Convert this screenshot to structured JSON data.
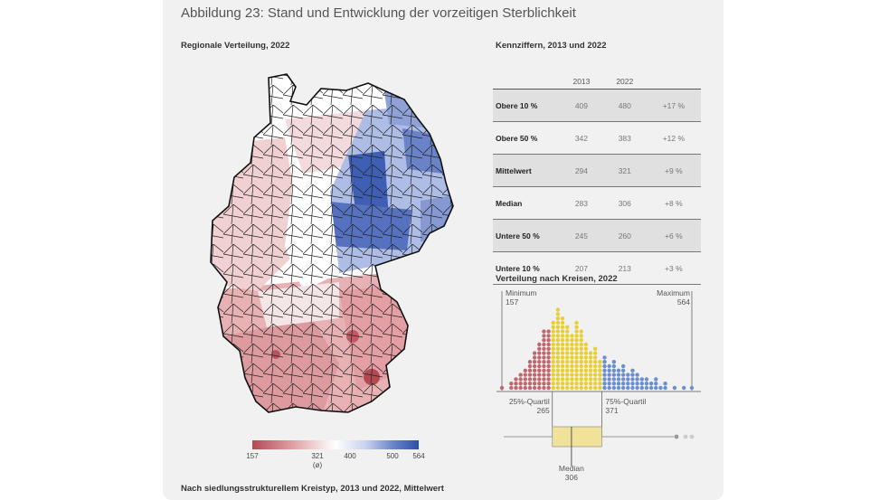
{
  "title": "Abbildung 23: Stand und Entwicklung der vorzeitigen Sterblichkeit",
  "map_heading": "Regionale Verteilung, 2022",
  "table_heading": "Kennziffern, 2013 und 2022",
  "dist_heading": "Verteilung nach Kreisen, 2022",
  "bottom_heading": "Nach siedlungsstrukturellem Kreistyp, 2013 und 2022, Mittelwert",
  "legend": {
    "min": "157",
    "mean": "321",
    "mean_sub": "(ø)",
    "t400": "400",
    "t500": "500",
    "max": "564"
  },
  "colors": {
    "low": "#b34a52",
    "mid": "#ffffff",
    "high": "#2c4fa5",
    "quartile_low": "#c0666e",
    "quartile_mid": "#e8cf37",
    "quartile_high": "#6a8fd0",
    "box": "#f1e29a"
  },
  "chart_data": [
    {
      "type": "table",
      "title": "Kennziffern, 2013 und 2022",
      "columns": [
        "",
        "2013",
        "2022",
        ""
      ],
      "rows": [
        {
          "label": "Obere 10 %",
          "v2013": "409",
          "v2022": "480",
          "change": "+17 %",
          "shade": true
        },
        {
          "label": "Obere 50 %",
          "v2013": "342",
          "v2022": "383",
          "change": "+12 %",
          "shade": false
        },
        {
          "label": "Mittelwert",
          "v2013": "294",
          "v2022": "321",
          "change": "+9 %",
          "shade": true
        },
        {
          "label": "Median",
          "v2013": "283",
          "v2022": "306",
          "change": "+8 %",
          "shade": false
        },
        {
          "label": "Untere 50 %",
          "v2013": "245",
          "v2022": "260",
          "change": "+6 %",
          "shade": true
        },
        {
          "label": "Untere 10 %",
          "v2013": "207",
          "v2022": "213",
          "change": "+3 %",
          "shade": false
        }
      ]
    },
    {
      "type": "scatter",
      "title": "Verteilung nach Kreisen, 2022",
      "xlim": [
        157,
        564
      ],
      "min_label": "Minimum",
      "min_value": "157",
      "max_label": "Maximum",
      "max_value": "564",
      "q1_label": "25%-Quartil",
      "q1_value": "265",
      "q3_label": "75%-Quartil",
      "q3_value": "371",
      "median_label": "Median",
      "median_value": "306",
      "q1": 265,
      "q3": 371,
      "median": 306,
      "bins": [
        {
          "x": 157,
          "count": 1
        },
        {
          "x": 177,
          "count": 2
        },
        {
          "x": 187,
          "count": 3
        },
        {
          "x": 197,
          "count": 4
        },
        {
          "x": 207,
          "count": 5
        },
        {
          "x": 217,
          "count": 7
        },
        {
          "x": 227,
          "count": 9
        },
        {
          "x": 237,
          "count": 11
        },
        {
          "x": 247,
          "count": 14
        },
        {
          "x": 257,
          "count": 14
        },
        {
          "x": 267,
          "count": 16
        },
        {
          "x": 277,
          "count": 19
        },
        {
          "x": 287,
          "count": 17
        },
        {
          "x": 297,
          "count": 15
        },
        {
          "x": 307,
          "count": 13
        },
        {
          "x": 317,
          "count": 16
        },
        {
          "x": 327,
          "count": 14
        },
        {
          "x": 337,
          "count": 11
        },
        {
          "x": 347,
          "count": 9
        },
        {
          "x": 357,
          "count": 10
        },
        {
          "x": 367,
          "count": 7
        },
        {
          "x": 377,
          "count": 8
        },
        {
          "x": 387,
          "count": 6
        },
        {
          "x": 397,
          "count": 7
        },
        {
          "x": 407,
          "count": 5
        },
        {
          "x": 417,
          "count": 6
        },
        {
          "x": 427,
          "count": 4
        },
        {
          "x": 437,
          "count": 5
        },
        {
          "x": 447,
          "count": 4
        },
        {
          "x": 457,
          "count": 3
        },
        {
          "x": 467,
          "count": 3
        },
        {
          "x": 477,
          "count": 2
        },
        {
          "x": 487,
          "count": 3
        },
        {
          "x": 497,
          "count": 1
        },
        {
          "x": 507,
          "count": 2
        },
        {
          "x": 527,
          "count": 1
        },
        {
          "x": 547,
          "count": 1
        },
        {
          "x": 564,
          "count": 1
        }
      ]
    }
  ]
}
